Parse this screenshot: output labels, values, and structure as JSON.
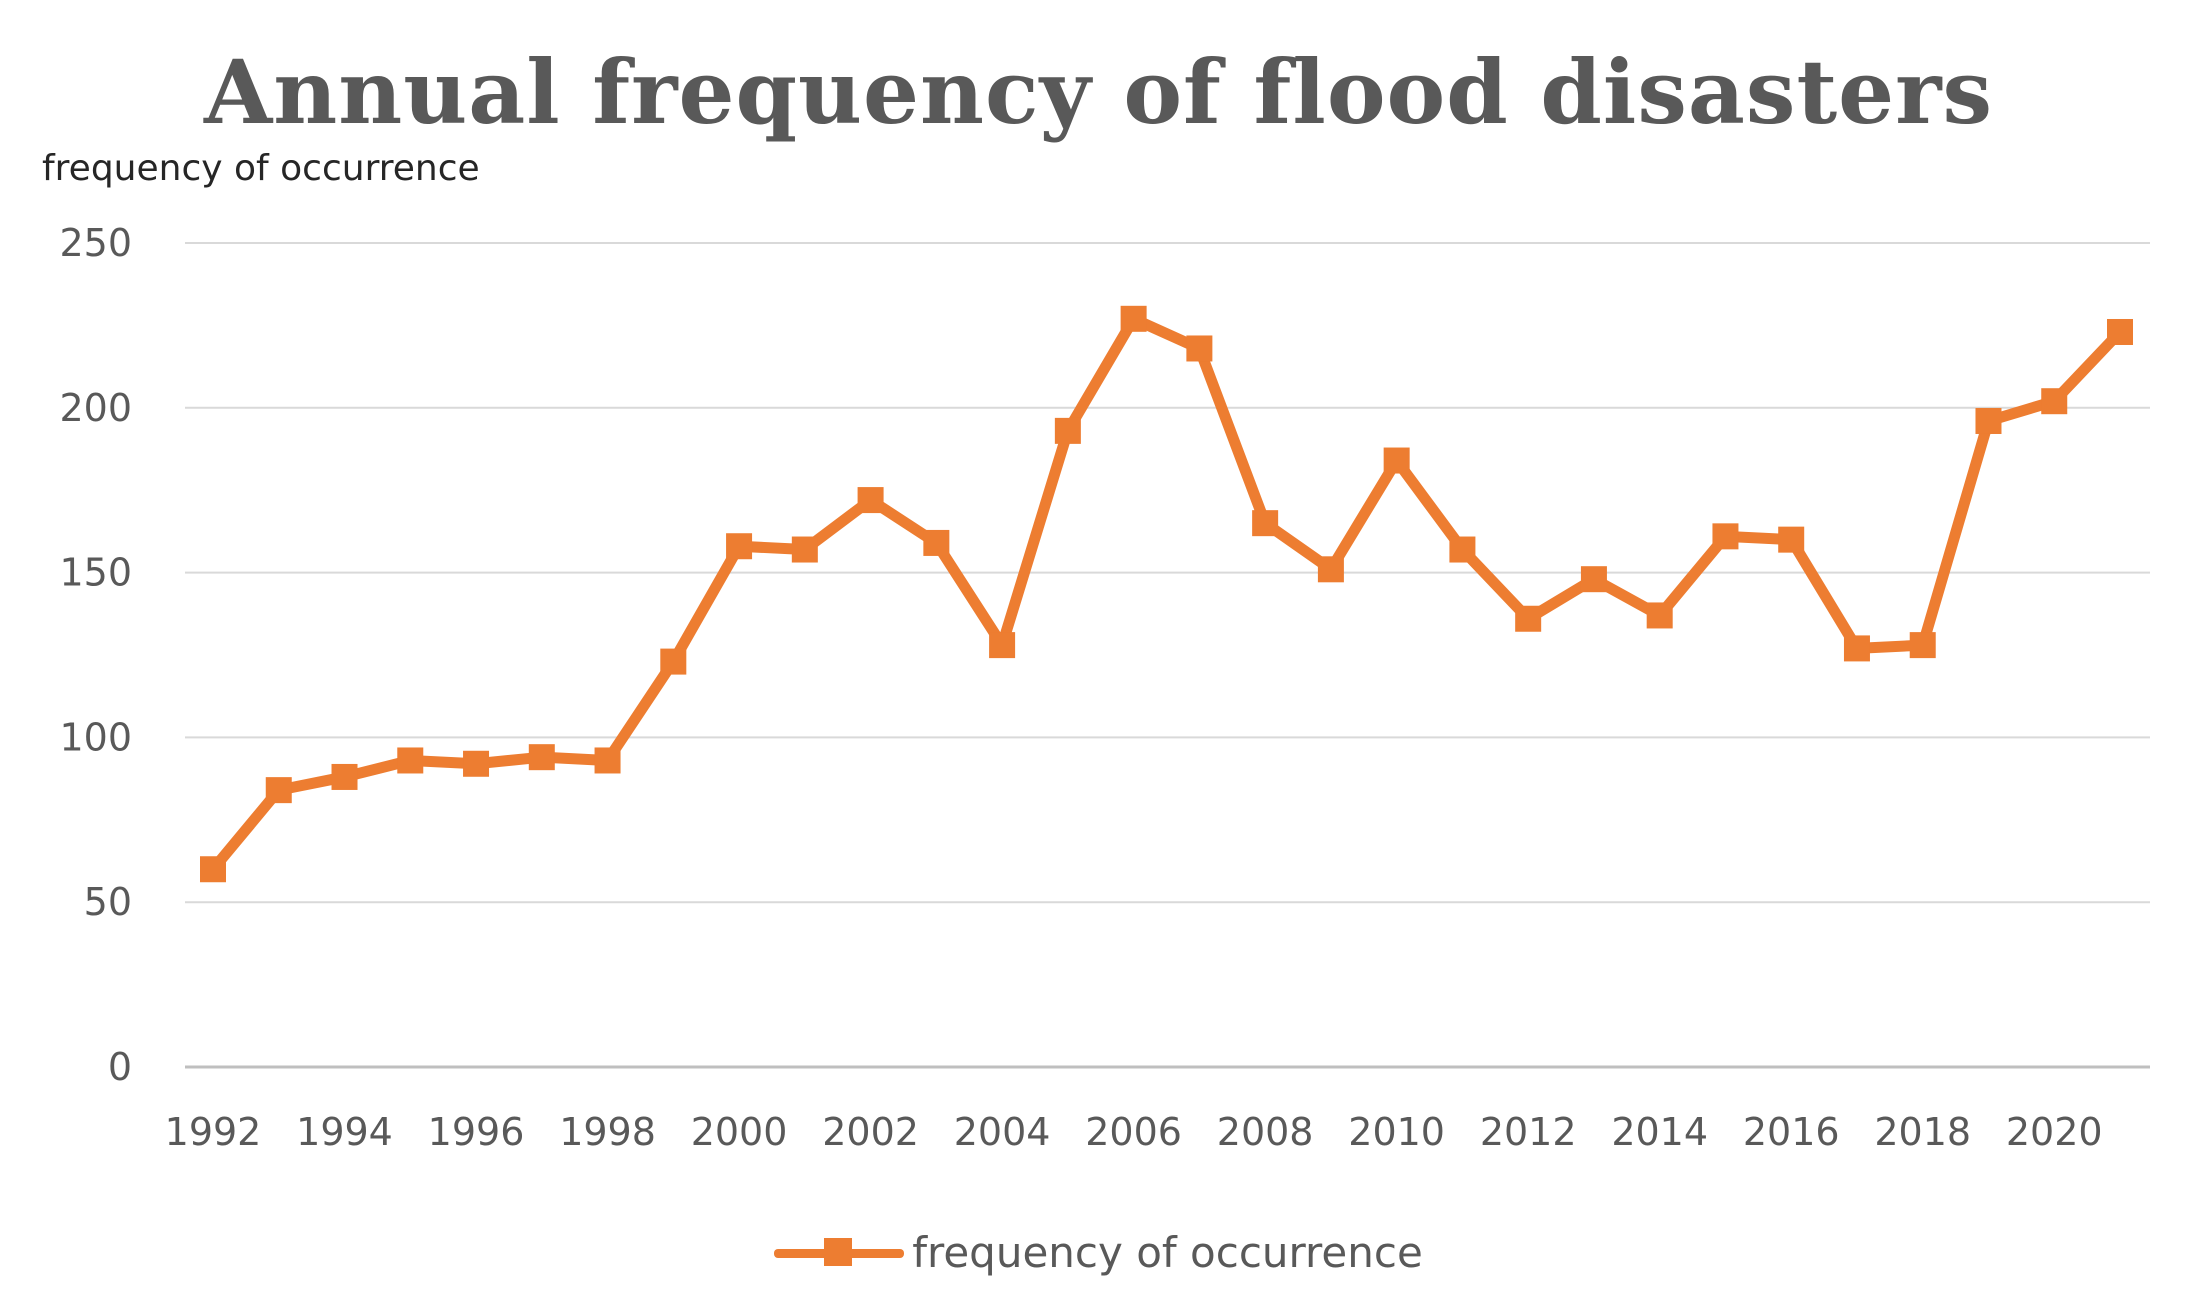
{
  "chart_data": {
    "type": "line",
    "title": "Annual frequency of flood disasters",
    "ylabel": "frequency of occurrence",
    "xlabel": "",
    "ylim": [
      0,
      250
    ],
    "yticks": [
      0,
      50,
      100,
      150,
      200,
      250
    ],
    "xtick_labels": [
      "1992",
      "1994",
      "1996",
      "1998",
      "2000",
      "2002",
      "2004",
      "2006",
      "2008",
      "2010",
      "2012",
      "2014",
      "2016",
      "2018",
      "2020"
    ],
    "grid": true,
    "legend_position": "bottom",
    "x": [
      1992,
      1993,
      1994,
      1995,
      1996,
      1997,
      1998,
      1999,
      2000,
      2001,
      2002,
      2003,
      2004,
      2005,
      2006,
      2007,
      2008,
      2009,
      2010,
      2011,
      2012,
      2013,
      2014,
      2015,
      2016,
      2017,
      2018,
      2019,
      2020,
      2021
    ],
    "series": [
      {
        "name": "frequency of occurrence",
        "color": "#ED7D31",
        "values": [
          60,
          84,
          88,
          93,
          92,
          94,
          93,
          123,
          158,
          157,
          172,
          159,
          128,
          193,
          227,
          218,
          165,
          151,
          184,
          157,
          136,
          148,
          137,
          161,
          160,
          127,
          128,
          196,
          202,
          223
        ]
      }
    ]
  }
}
